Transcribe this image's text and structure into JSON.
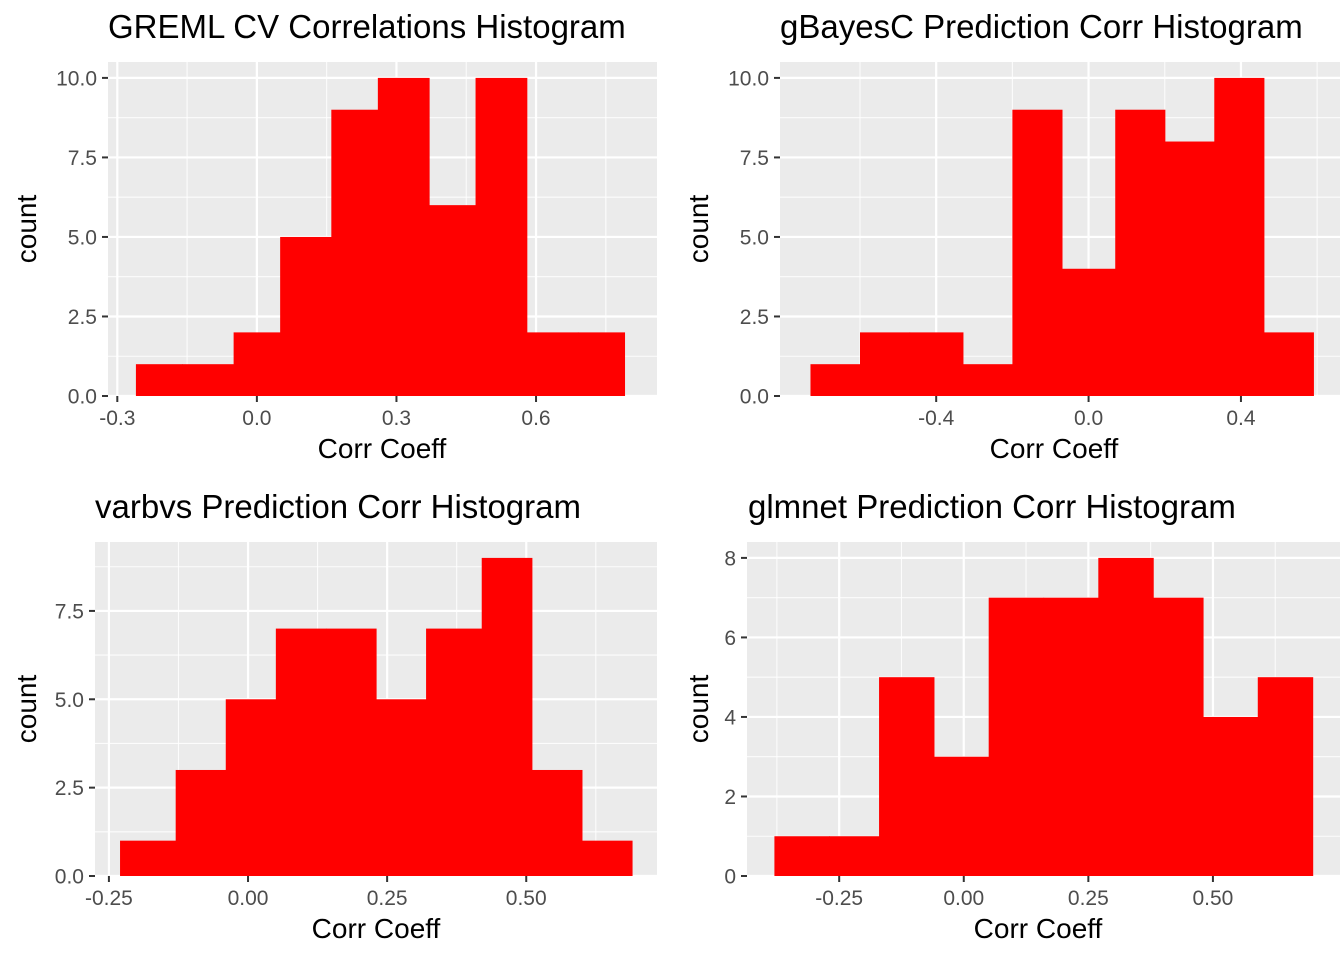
{
  "colors": {
    "panel_bg": "#EBEBEB",
    "grid_major": "#FFFFFF",
    "bar": "#FF0000",
    "tick_text": "#4D4D4D",
    "tick_mark": "#333333"
  },
  "chart_data": [
    {
      "type": "bar",
      "title": "GREML CV Correlations Histogram",
      "xlabel": "Corr Coeff",
      "ylabel": "count",
      "bin_edges": [
        -0.26,
        -0.16,
        -0.05,
        0.05,
        0.16,
        0.26,
        0.37,
        0.47,
        0.58,
        0.69,
        0.79
      ],
      "counts": [
        1,
        1,
        2,
        5,
        9,
        10,
        6,
        10,
        2,
        2
      ],
      "xlim": [
        -0.32,
        0.86
      ],
      "ylim": [
        0,
        10.5
      ],
      "xticks": [
        -0.3,
        0.0,
        0.3,
        0.6
      ],
      "xtick_labels": [
        "-0.3",
        "0.0",
        "0.3",
        "0.6"
      ],
      "yticks": [
        0,
        2.5,
        5,
        7.5,
        10
      ],
      "ytick_labels": [
        "0.0",
        "2.5",
        "5.0",
        "7.5",
        "10.0"
      ]
    },
    {
      "type": "bar",
      "title": "gBayesC Prediction Corr Histogram",
      "xlabel": "Corr Coeff",
      "ylabel": "count",
      "bin_edges": [
        -0.73,
        -0.6,
        -0.47,
        -0.33,
        -0.2,
        -0.07,
        0.07,
        0.2,
        0.33,
        0.46,
        0.59
      ],
      "counts": [
        1,
        2,
        2,
        1,
        9,
        4,
        9,
        8,
        10,
        2
      ],
      "xlim": [
        -0.81,
        0.66
      ],
      "ylim": [
        0,
        10.5
      ],
      "xticks": [
        -0.4,
        0.0,
        0.4
      ],
      "xtick_labels": [
        "-0.4",
        "0.0",
        "0.4"
      ],
      "yticks": [
        0,
        2.5,
        5,
        7.5,
        10
      ],
      "ytick_labels": [
        "0.0",
        "2.5",
        "5.0",
        "7.5",
        "10.0"
      ]
    },
    {
      "type": "bar",
      "title": "varbvs Prediction Corr Histogram",
      "xlabel": "Corr Coeff",
      "ylabel": "count",
      "bin_edges": [
        -0.23,
        -0.13,
        -0.04,
        0.05,
        0.14,
        0.23,
        0.32,
        0.42,
        0.51,
        0.6,
        0.69
      ],
      "counts": [
        1,
        3,
        5,
        7,
        7,
        5,
        7,
        9,
        3,
        1
      ],
      "xlim": [
        -0.275,
        0.735
      ],
      "ylim": [
        0,
        9.45
      ],
      "xticks": [
        -0.25,
        0.0,
        0.25,
        0.5
      ],
      "xtick_labels": [
        "-0.25",
        "0.00",
        "0.25",
        "0.50"
      ],
      "yticks": [
        0,
        2.5,
        5,
        7.5
      ],
      "ytick_labels": [
        "0.0",
        "2.5",
        "5.0",
        "7.5"
      ]
    },
    {
      "type": "bar",
      "title": "glmnet Prediction Corr Histogram",
      "xlabel": "Corr Coeff",
      "ylabel": "count",
      "bin_edges": [
        -0.38,
        -0.27,
        -0.17,
        -0.06,
        0.05,
        0.16,
        0.27,
        0.38,
        0.48,
        0.59,
        0.7
      ],
      "counts": [
        1,
        1,
        5,
        3,
        7,
        7,
        8,
        7,
        4,
        5
      ],
      "xlim": [
        -0.435,
        0.755
      ],
      "ylim": [
        0,
        8.4
      ],
      "xticks": [
        -0.25,
        0.0,
        0.25,
        0.5
      ],
      "xtick_labels": [
        "-0.25",
        "0.00",
        "0.25",
        "0.50"
      ],
      "yticks": [
        0,
        2,
        4,
        6,
        8
      ],
      "ytick_labels": [
        "0",
        "2",
        "4",
        "6",
        "8"
      ]
    }
  ]
}
